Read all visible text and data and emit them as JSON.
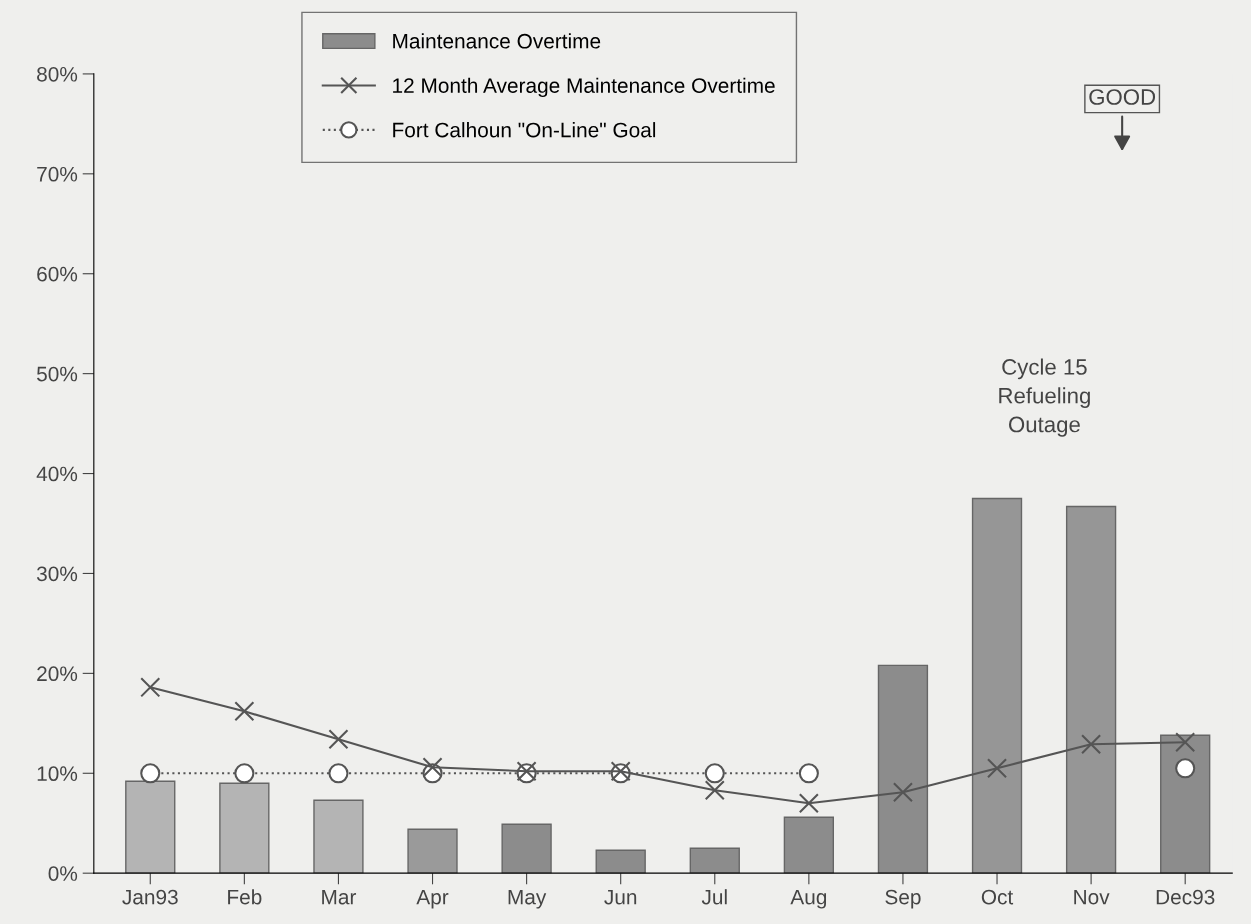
{
  "chart_data": {
    "type": "bar",
    "categories": [
      "Jan93",
      "Feb",
      "Mar",
      "Apr",
      "May",
      "Jun",
      "Jul",
      "Aug",
      "Sep",
      "Oct",
      "Nov",
      "Dec93"
    ],
    "series": [
      {
        "name": "Maintenance Overtime",
        "colors": [
          "#b4b4b4",
          "#b4b4b4",
          "#b4b4b4",
          "#9a9a9a",
          "#8c8c8c",
          "#8c8c8c",
          "#8c8c8c",
          "#8c8c8c",
          "#8c8c8c",
          "#969696",
          "#969696",
          "#8c8c8c"
        ],
        "color": "#8c8c8c",
        "values": [
          9.2,
          9.0,
          7.3,
          4.4,
          4.9,
          2.3,
          2.5,
          5.6,
          20.8,
          37.5,
          36.7,
          13.8
        ]
      },
      {
        "name": "12 Month Average Maintenance Overtime",
        "type": "line",
        "color": "#555555",
        "marker": "cross",
        "line_style": "solid",
        "values": [
          18.6,
          16.2,
          13.4,
          10.6,
          10.2,
          10.2,
          8.3,
          7.0,
          8.1,
          10.5,
          12.9,
          13.1
        ]
      },
      {
        "name": "Fort Calhoun \"On-Line\" Goal",
        "type": "line",
        "color": "#555555",
        "marker": "circle",
        "line_style": "dotted",
        "values": [
          10,
          10,
          10,
          10,
          10,
          10,
          10,
          10,
          null,
          null,
          null,
          10.5
        ]
      }
    ],
    "ylim": [
      0,
      80
    ],
    "yticks": [
      {
        "value": 0,
        "label": "0%"
      },
      {
        "value": 10,
        "label": "10%"
      },
      {
        "value": 20,
        "label": "20%"
      },
      {
        "value": 30,
        "label": "30%"
      },
      {
        "value": 40,
        "label": "40%"
      },
      {
        "value": 50,
        "label": "50%"
      },
      {
        "value": 60,
        "label": "60%"
      },
      {
        "value": 70,
        "label": "70%"
      },
      {
        "value": 80,
        "label": "80%"
      }
    ],
    "annotations": [
      "Cycle 15\nRefueling\nOutage",
      "GOOD"
    ],
    "legend": "top",
    "grid": false
  }
}
